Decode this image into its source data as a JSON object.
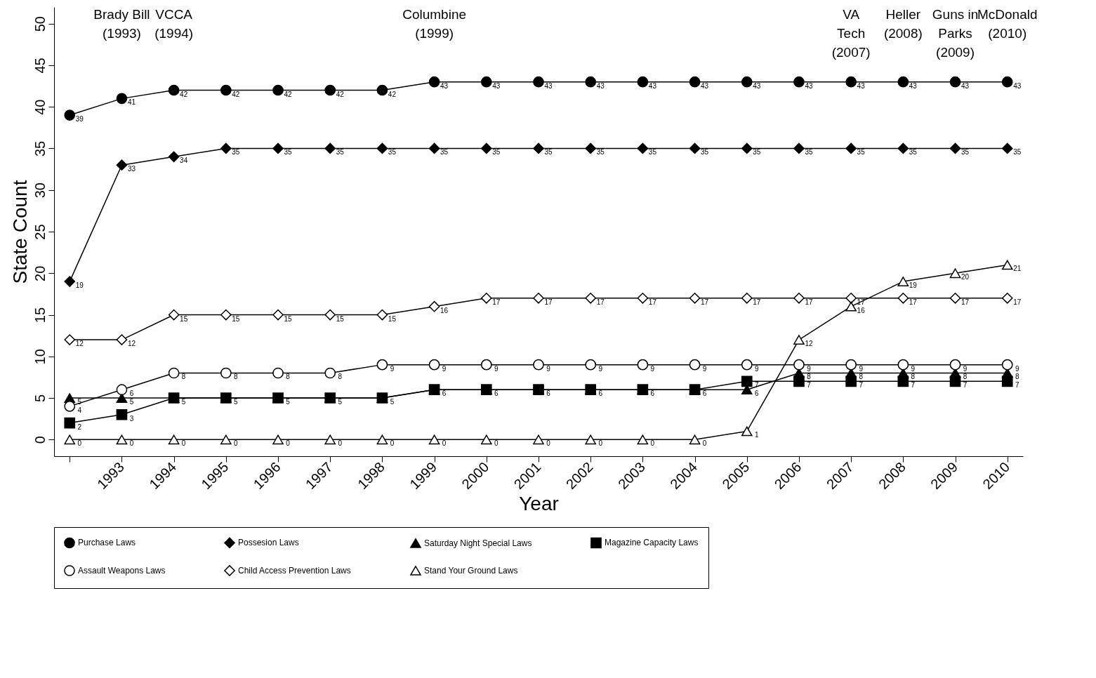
{
  "chart_data": {
    "type": "line",
    "xlabel": "Year",
    "ylabel": "State Count",
    "categories": [
      null,
      "1993",
      "1994",
      "1995",
      "1996",
      "1997",
      "1998",
      "1999",
      "2000",
      "2001",
      "2002",
      "2003",
      "2004",
      "2005",
      "2006",
      "2007",
      "2008",
      "2009",
      "2010"
    ],
    "ylim": [
      -2,
      52
    ],
    "yticks": [
      0,
      5,
      10,
      15,
      20,
      25,
      30,
      35,
      40,
      45,
      50
    ],
    "grid": false,
    "legend": "bottom",
    "data_labels": true,
    "series": [
      {
        "name": "Purchase Laws",
        "color": "#000000",
        "marker": "circle",
        "values": [
          39,
          41,
          42,
          42,
          42,
          42,
          42,
          43,
          43,
          43,
          43,
          43,
          43,
          43,
          43,
          43,
          43,
          43,
          43
        ]
      },
      {
        "name": "Possesion Laws",
        "color": "#000000",
        "marker": "diamond",
        "values": [
          19,
          33,
          34,
          35,
          35,
          35,
          35,
          35,
          35,
          35,
          35,
          35,
          35,
          35,
          35,
          35,
          35,
          35,
          35
        ]
      },
      {
        "name": "Saturday Night Special Laws",
        "color": "#000000",
        "marker": "triangle",
        "values": [
          5,
          5,
          5,
          5,
          5,
          5,
          5,
          6,
          6,
          6,
          6,
          6,
          6,
          6,
          8,
          8,
          8,
          8,
          8
        ],
        "value_labels": [
          "5",
          "5",
          null,
          null,
          null,
          null,
          null,
          null,
          null,
          null,
          null,
          null,
          null,
          "6",
          "8",
          "8",
          "8",
          "8",
          "8"
        ]
      },
      {
        "name": "Magazine Capacity Laws",
        "color": "#000000",
        "marker": "square",
        "values": [
          2,
          3,
          5,
          5,
          5,
          5,
          5,
          6,
          6,
          6,
          6,
          6,
          6,
          7,
          7,
          7,
          7,
          7,
          7
        ]
      },
      {
        "name": "Assault Weapons Laws",
        "color": "#000000",
        "marker": "circle-open",
        "values": [
          4,
          6,
          8,
          8,
          8,
          8,
          9,
          9,
          9,
          9,
          9,
          9,
          9,
          9,
          9,
          9,
          9,
          9,
          9
        ]
      },
      {
        "name": "Child Access Prevention Laws",
        "color": "#000000",
        "marker": "diamond-open",
        "values": [
          12,
          12,
          15,
          15,
          15,
          15,
          15,
          16,
          17,
          17,
          17,
          17,
          17,
          17,
          17,
          17,
          17,
          17,
          17
        ]
      },
      {
        "name": "Stand Your Ground Laws",
        "color": "#000000",
        "marker": "triangle-open",
        "values": [
          0,
          0,
          0,
          0,
          0,
          0,
          0,
          0,
          0,
          0,
          0,
          0,
          0,
          1,
          12,
          16,
          19,
          20,
          21
        ]
      }
    ],
    "annotations": [
      "Brady Bill\n(1993)",
      "VCCA\n(1994)",
      "Columbine\n(1999)",
      "VA\nTech\n(2007)",
      "Heller\n(2008)",
      "Guns in\nParks\n(2009)",
      "McDonald\n(2010)"
    ]
  }
}
